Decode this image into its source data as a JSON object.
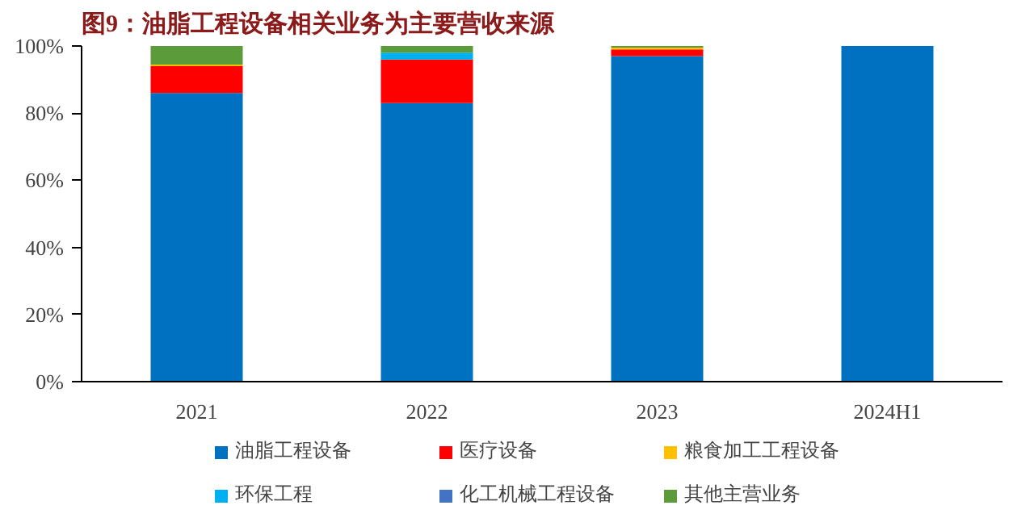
{
  "chart_data": {
    "type": "bar",
    "stacked": true,
    "title": "图9：油脂工程设备相关业务为主要营收来源",
    "categories": [
      "2021",
      "2022",
      "2023",
      "2024H1"
    ],
    "series": [
      {
        "name": "油脂工程设备",
        "color": "#0070c0",
        "values": [
          86,
          83,
          97,
          100
        ]
      },
      {
        "name": "医疗设备",
        "color": "#ff0000",
        "values": [
          8,
          13,
          2,
          0
        ]
      },
      {
        "name": "粮食加工工程设备",
        "color": "#ffc000",
        "values": [
          0.5,
          0,
          0.5,
          0
        ]
      },
      {
        "name": "环保工程",
        "color": "#00b0f0",
        "values": [
          0,
          2,
          0,
          0
        ]
      },
      {
        "name": "化工机械工程设备",
        "color": "#4472c4",
        "values": [
          0,
          0,
          0,
          0
        ]
      },
      {
        "name": "其他主营业务",
        "color": "#5b9b3a",
        "values": [
          5.5,
          2,
          0.5,
          0
        ]
      }
    ],
    "ylim": [
      0,
      100
    ],
    "yticks": [
      {
        "value": 0,
        "label": "0%"
      },
      {
        "value": 20,
        "label": "20%"
      },
      {
        "value": 40,
        "label": "40%"
      },
      {
        "value": 60,
        "label": "60%"
      },
      {
        "value": 80,
        "label": "80%"
      },
      {
        "value": 100,
        "label": "100%"
      }
    ],
    "grid": false,
    "legend": "bottom"
  }
}
